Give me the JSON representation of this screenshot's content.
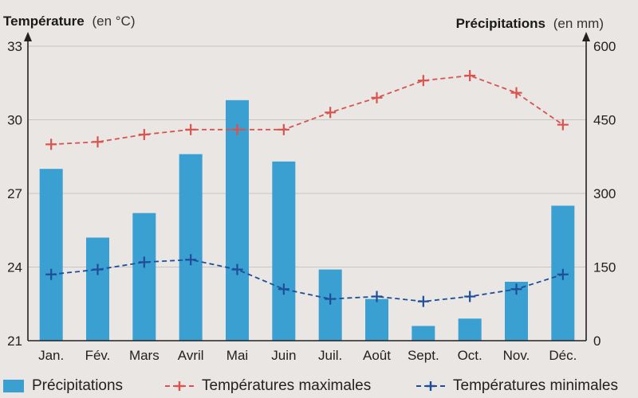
{
  "chart_data": {
    "type": "bar-line-combo",
    "left_axis": {
      "title_bold": "Température",
      "title_unit": "(en °C)",
      "min": 21,
      "max": 33,
      "ticks": [
        21,
        24,
        27,
        30,
        33
      ]
    },
    "right_axis": {
      "title_bold": "Précipitations",
      "title_unit": "(en mm)",
      "min": 0,
      "max": 600,
      "ticks": [
        0,
        150,
        300,
        450,
        600
      ]
    },
    "categories": [
      "Jan.",
      "Fév.",
      "Mars",
      "Avril",
      "Mai",
      "Juin",
      "Juil.",
      "Août",
      "Sept.",
      "Oct.",
      "Nov.",
      "Déc."
    ],
    "series": [
      {
        "name": "Précipitations",
        "kind": "bar",
        "axis": "right",
        "color": "#3a9fd1",
        "values": [
          350,
          210,
          260,
          380,
          490,
          365,
          145,
          85,
          30,
          45,
          120,
          275
        ]
      },
      {
        "name": "Températures maximales",
        "kind": "line",
        "axis": "left",
        "color": "#d9534f",
        "values": [
          29.0,
          29.1,
          29.4,
          29.6,
          29.6,
          29.6,
          30.3,
          30.9,
          31.6,
          31.8,
          31.1,
          29.8
        ]
      },
      {
        "name": "Températures minimales",
        "kind": "line",
        "axis": "left",
        "color": "#1f4e99",
        "values": [
          23.7,
          23.9,
          24.2,
          24.3,
          23.9,
          23.1,
          22.7,
          22.8,
          22.6,
          22.8,
          23.1,
          23.7
        ]
      }
    ],
    "grid": true,
    "legend_position": "bottom"
  }
}
